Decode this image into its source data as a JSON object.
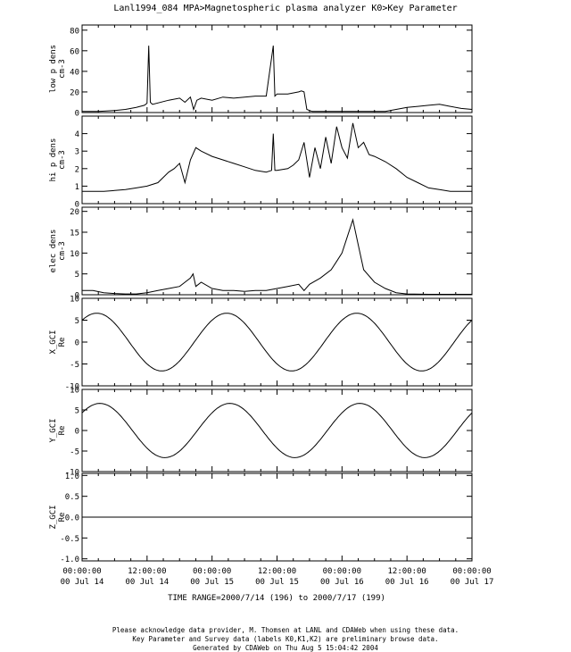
{
  "chart_data": {
    "type": "line",
    "title": "Lanl1994_084  MPA>Magnetospheric plasma analyzer  K0>Key Parameter",
    "time_range_label": "TIME RANGE=2000/7/14 (196) to 2000/7/17 (199)",
    "x_tick_labels": [
      {
        "time": "00:00:00",
        "date": "00 Jul 14"
      },
      {
        "time": "12:00:00",
        "date": "00 Jul 14"
      },
      {
        "time": "00:00:00",
        "date": "00 Jul 15"
      },
      {
        "time": "12:00:00",
        "date": "00 Jul 15"
      },
      {
        "time": "00:00:00",
        "date": "00 Jul 16"
      },
      {
        "time": "12:00:00",
        "date": "00 Jul 16"
      },
      {
        "time": "00:00:00",
        "date": "00 Jul 17"
      }
    ],
    "xlim_hours": [
      0,
      72
    ],
    "panels": [
      {
        "ylabel": [
          "low p dens",
          "cm-3"
        ],
        "ylim": [
          0,
          85
        ],
        "yticks": [
          0,
          20,
          40,
          60,
          80
        ],
        "x": [
          0,
          3,
          6,
          8,
          10,
          11.5,
          12,
          12.3,
          12.6,
          13,
          16,
          18,
          19,
          20,
          20.6,
          21.2,
          22,
          24,
          26,
          28,
          30,
          32,
          34,
          35.3,
          35.6,
          36,
          38,
          40,
          40.5,
          41,
          41.5,
          42,
          42.5,
          44,
          46,
          48,
          52,
          56,
          58,
          60,
          62,
          64,
          66,
          68,
          70,
          72
        ],
        "values": [
          1,
          1,
          2,
          3,
          5,
          7,
          9,
          65,
          10,
          8,
          12,
          14,
          10,
          15,
          3,
          12,
          14,
          12,
          15,
          14,
          15,
          16,
          16,
          65,
          16,
          18,
          18,
          20,
          21,
          20,
          3,
          2,
          1,
          1,
          1,
          1,
          1,
          1,
          3,
          5,
          6,
          7,
          8,
          6,
          4,
          3
        ]
      },
      {
        "ylabel": [
          "hi p dens",
          "cm-3"
        ],
        "ylim": [
          0,
          5
        ],
        "yticks": [
          0,
          1,
          2,
          3,
          4
        ],
        "x": [
          0,
          2,
          4,
          6,
          8,
          10,
          12,
          14,
          15,
          16,
          17,
          18,
          19,
          20,
          21,
          22,
          24,
          26,
          28,
          30,
          32,
          34,
          35,
          35.3,
          35.6,
          36,
          38,
          39,
          40,
          41,
          42,
          43,
          44,
          45,
          46,
          47,
          48,
          49,
          50,
          51,
          52,
          53,
          54,
          56,
          58,
          60,
          62,
          64,
          66,
          68,
          70,
          72
        ],
        "values": [
          0.7,
          0.7,
          0.7,
          0.75,
          0.8,
          0.9,
          1.0,
          1.2,
          1.5,
          1.8,
          2.0,
          2.3,
          1.2,
          2.5,
          3.2,
          3.0,
          2.7,
          2.5,
          2.3,
          2.1,
          1.9,
          1.8,
          1.9,
          4.0,
          1.9,
          1.9,
          2.0,
          2.2,
          2.5,
          3.5,
          1.5,
          3.2,
          2.0,
          3.8,
          2.3,
          4.4,
          3.2,
          2.6,
          4.6,
          3.2,
          3.5,
          2.8,
          2.7,
          2.4,
          2.0,
          1.5,
          1.2,
          0.9,
          0.8,
          0.7,
          0.7,
          0.7
        ]
      },
      {
        "ylabel": [
          "elec dens",
          "cm-3"
        ],
        "ylim": [
          0,
          21
        ],
        "yticks": [
          0,
          5,
          10,
          15,
          20
        ],
        "x": [
          0,
          2,
          4,
          6,
          8,
          10,
          12,
          14,
          16,
          18,
          19,
          20,
          20.5,
          21,
          22,
          24,
          26,
          28,
          30,
          32,
          34,
          36,
          38,
          40,
          41,
          42,
          44,
          46,
          47,
          48,
          49,
          50,
          51,
          52,
          54,
          56,
          58,
          60,
          64,
          68,
          72
        ],
        "values": [
          1,
          1,
          0.5,
          0.3,
          0.2,
          0.2,
          0.5,
          1.0,
          1.5,
          2.0,
          3.0,
          4.0,
          5.0,
          2.0,
          3.0,
          1.5,
          1.0,
          1.0,
          0.8,
          1.0,
          1.0,
          1.5,
          2.0,
          2.5,
          1.0,
          2.5,
          4.0,
          6.0,
          8.0,
          10.0,
          14.0,
          18.0,
          12.0,
          6.0,
          3.0,
          1.5,
          0.5,
          0.2,
          0.1,
          0.1,
          0.1
        ]
      },
      {
        "ylabel": [
          "X_GCI",
          "Re"
        ],
        "ylim": [
          -10,
          10
        ],
        "yticks": [
          -10,
          -5,
          0,
          5,
          10
        ],
        "curve": "sine",
        "amplitude": 6.6,
        "period_hours": 24,
        "phase_value_at_zero": 5
      },
      {
        "ylabel": [
          "Y_GCI",
          "Re"
        ],
        "ylim": [
          -10,
          10
        ],
        "yticks": [
          -10,
          -5,
          0,
          5,
          10
        ],
        "curve": "sine",
        "amplitude": 6.6,
        "period_hours": 24,
        "phase_value_at_zero": 4.3
      },
      {
        "ylabel": [
          "Z_GCI",
          "Re"
        ],
        "ylim": [
          -1.05,
          1.05
        ],
        "yticks": [
          -1.0,
          -0.5,
          0.0,
          0.5,
          1.0
        ],
        "ytick_labels": [
          "-1.0",
          "-0.5",
          "0.0",
          "0.5",
          "1.0"
        ],
        "x": [
          0,
          72
        ],
        "values": [
          0,
          0
        ]
      }
    ],
    "footer": [
      "Please acknowledge data provider, M. Thomsen at LANL and CDAWeb when using these data.",
      "Key Parameter and Survey data (labels K0,K1,K2) are preliminary browse data.",
      "Generated by CDAWeb on Thu Aug  5 15:04:42 2004"
    ],
    "grid": false,
    "line_color": "#000000"
  }
}
